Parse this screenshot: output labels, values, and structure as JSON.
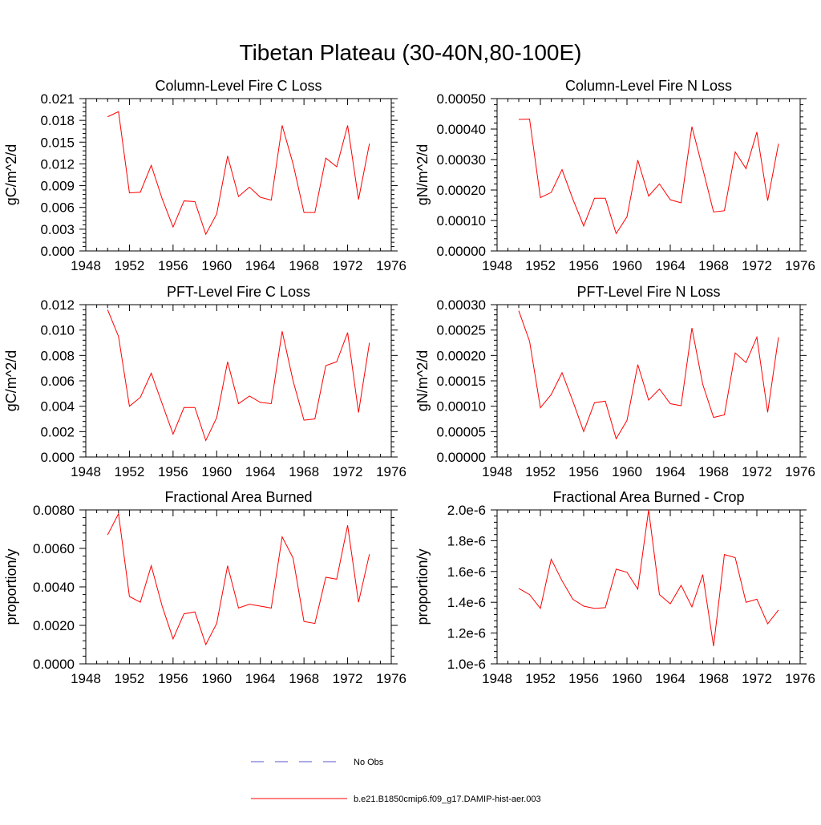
{
  "page_title": "Tibetan Plateau (30-40N,80-100E)",
  "legend": {
    "items": [
      {
        "label": "No Obs",
        "color": "#5555cc",
        "dash": true
      },
      {
        "label": "b.e21.B1850cmip6.f09_g17.DAMIP-hist-aer.003",
        "color": "#ff0000",
        "dash": false
      }
    ]
  },
  "chart_data": [
    {
      "type": "line",
      "title": "Column-Level Fire C Loss",
      "ylabel": "gC/m^2/d",
      "xlim": [
        1948,
        1976
      ],
      "ylim": [
        0,
        0.021
      ],
      "xticks": [
        "1948",
        "1952",
        "1956",
        "1960",
        "1964",
        "1968",
        "1972",
        "1976"
      ],
      "yticks": [
        "0.000",
        "0.003",
        "0.006",
        "0.009",
        "0.012",
        "0.015",
        "0.018",
        "0.021"
      ],
      "x": [
        1950,
        1951,
        1952,
        1953,
        1954,
        1955,
        1956,
        1957,
        1958,
        1959,
        1960,
        1961,
        1962,
        1963,
        1964,
        1965,
        1966,
        1967,
        1968,
        1969,
        1970,
        1971,
        1972,
        1973,
        1974
      ],
      "series": [
        {
          "color": "#ff0000",
          "values": [
            0.0185,
            0.0192,
            0.008,
            0.0081,
            0.0118,
            0.0072,
            0.0033,
            0.0069,
            0.0068,
            0.0023,
            0.0051,
            0.0131,
            0.0075,
            0.0088,
            0.0074,
            0.007,
            0.0173,
            0.012,
            0.0053,
            0.0053,
            0.0128,
            0.0116,
            0.0173,
            0.0071,
            0.0148
          ]
        }
      ]
    },
    {
      "type": "line",
      "title": "Column-Level Fire N Loss",
      "ylabel": "gN/m^2/d",
      "xlim": [
        1948,
        1976
      ],
      "ylim": [
        0,
        0.0005
      ],
      "xticks": [
        "1948",
        "1952",
        "1956",
        "1960",
        "1964",
        "1968",
        "1972",
        "1976"
      ],
      "yticks": [
        "0.00000",
        "0.00010",
        "0.00020",
        "0.00030",
        "0.00040",
        "0.00050"
      ],
      "x": [
        1950,
        1951,
        1952,
        1953,
        1954,
        1955,
        1956,
        1957,
        1958,
        1959,
        1960,
        1961,
        1962,
        1963,
        1964,
        1965,
        1966,
        1967,
        1968,
        1969,
        1970,
        1971,
        1972,
        1973,
        1974
      ],
      "series": [
        {
          "color": "#ff0000",
          "values": [
            0.000432,
            0.000433,
            0.000175,
            0.000192,
            0.000267,
            0.00017,
            8.2e-05,
            0.000173,
            0.000173,
            5.7e-05,
            0.000112,
            0.000298,
            0.00018,
            0.00022,
            0.000168,
            0.000158,
            0.000408,
            0.00027,
            0.000128,
            0.000132,
            0.000325,
            0.00027,
            0.00039,
            0.000165,
            0.000352
          ]
        }
      ]
    },
    {
      "type": "line",
      "title": "PFT-Level Fire C Loss",
      "ylabel": "gC/m^2/d",
      "xlim": [
        1948,
        1976
      ],
      "ylim": [
        0,
        0.012
      ],
      "xticks": [
        "1948",
        "1952",
        "1956",
        "1960",
        "1964",
        "1968",
        "1972",
        "1976"
      ],
      "yticks": [
        "0.000",
        "0.002",
        "0.004",
        "0.006",
        "0.008",
        "0.010",
        "0.012"
      ],
      "x": [
        1950,
        1951,
        1952,
        1953,
        1954,
        1955,
        1956,
        1957,
        1958,
        1959,
        1960,
        1961,
        1962,
        1963,
        1964,
        1965,
        1966,
        1967,
        1968,
        1969,
        1970,
        1971,
        1972,
        1973,
        1974
      ],
      "series": [
        {
          "color": "#ff0000",
          "values": [
            0.0116,
            0.0095,
            0.004,
            0.0047,
            0.0066,
            0.0042,
            0.0018,
            0.0039,
            0.0039,
            0.0013,
            0.0031,
            0.0075,
            0.0042,
            0.0048,
            0.0043,
            0.0042,
            0.0099,
            0.006,
            0.0029,
            0.003,
            0.0072,
            0.0075,
            0.0098,
            0.0035,
            0.009
          ]
        }
      ]
    },
    {
      "type": "line",
      "title": "PFT-Level Fire N Loss",
      "ylabel": "gN/m^2/d",
      "xlim": [
        1948,
        1976
      ],
      "ylim": [
        0,
        0.0003
      ],
      "xticks": [
        "1948",
        "1952",
        "1956",
        "1960",
        "1964",
        "1968",
        "1972",
        "1976"
      ],
      "yticks": [
        "0.00000",
        "0.00005",
        "0.00010",
        "0.00015",
        "0.00020",
        "0.00025",
        "0.00030"
      ],
      "x": [
        1950,
        1951,
        1952,
        1953,
        1954,
        1955,
        1956,
        1957,
        1958,
        1959,
        1960,
        1961,
        1962,
        1963,
        1964,
        1965,
        1966,
        1967,
        1968,
        1969,
        1970,
        1971,
        1972,
        1973,
        1974
      ],
      "series": [
        {
          "color": "#ff0000",
          "values": [
            0.000288,
            0.000228,
            9.7e-05,
            0.000123,
            0.000166,
            0.00011,
            5e-05,
            0.000107,
            0.00011,
            3.6e-05,
            7.2e-05,
            0.000182,
            0.000112,
            0.000134,
            0.000105,
            0.000101,
            0.000254,
            0.000143,
            7.8e-05,
            8.3e-05,
            0.000205,
            0.000186,
            0.000236,
            8.8e-05,
            0.000236
          ]
        }
      ]
    },
    {
      "type": "line",
      "title": "Fractional Area Burned",
      "ylabel": "proportion/y",
      "xlim": [
        1948,
        1976
      ],
      "ylim": [
        0,
        0.008
      ],
      "xticks": [
        "1948",
        "1952",
        "1956",
        "1960",
        "1964",
        "1968",
        "1972",
        "1976"
      ],
      "yticks": [
        "0.0000",
        "0.0020",
        "0.0040",
        "0.0060",
        "0.0080"
      ],
      "x": [
        1950,
        1951,
        1952,
        1953,
        1954,
        1955,
        1956,
        1957,
        1958,
        1959,
        1960,
        1961,
        1962,
        1963,
        1964,
        1965,
        1966,
        1967,
        1968,
        1969,
        1970,
        1971,
        1972,
        1973,
        1974
      ],
      "series": [
        {
          "color": "#ff0000",
          "values": [
            0.0067,
            0.0078,
            0.0035,
            0.0032,
            0.0051,
            0.003,
            0.0013,
            0.0026,
            0.0027,
            0.001,
            0.0021,
            0.0051,
            0.0029,
            0.0031,
            0.003,
            0.0029,
            0.0066,
            0.0055,
            0.0022,
            0.0021,
            0.0045,
            0.0044,
            0.0072,
            0.0032,
            0.0057
          ]
        }
      ]
    },
    {
      "type": "line",
      "title": "Fractional Area Burned - Crop",
      "ylabel": "proportion/y",
      "xlim": [
        1948,
        1976
      ],
      "ylim": [
        1e-06,
        2e-06
      ],
      "xticks": [
        "1948",
        "1952",
        "1956",
        "1960",
        "1964",
        "1968",
        "1972",
        "1976"
      ],
      "yticks": [
        "1.0e-6",
        "1.2e-6",
        "1.4e-6",
        "1.6e-6",
        "1.8e-6",
        "2.0e-6"
      ],
      "x": [
        1950,
        1951,
        1952,
        1953,
        1954,
        1955,
        1956,
        1957,
        1958,
        1959,
        1960,
        1961,
        1962,
        1963,
        1964,
        1965,
        1966,
        1967,
        1968,
        1969,
        1970,
        1971,
        1972,
        1973,
        1974
      ],
      "series": [
        {
          "color": "#ff0000",
          "values": [
            1.49e-06,
            1.45e-06,
            1.36e-06,
            1.68e-06,
            1.54e-06,
            1.42e-06,
            1.375e-06,
            1.36e-06,
            1.365e-06,
            1.615e-06,
            1.595e-06,
            1.485e-06,
            2e-06,
            1.45e-06,
            1.39e-06,
            1.51e-06,
            1.37e-06,
            1.58e-06,
            1.115e-06,
            1.71e-06,
            1.69e-06,
            1.4e-06,
            1.42e-06,
            1.26e-06,
            1.35e-06
          ]
        }
      ]
    }
  ]
}
